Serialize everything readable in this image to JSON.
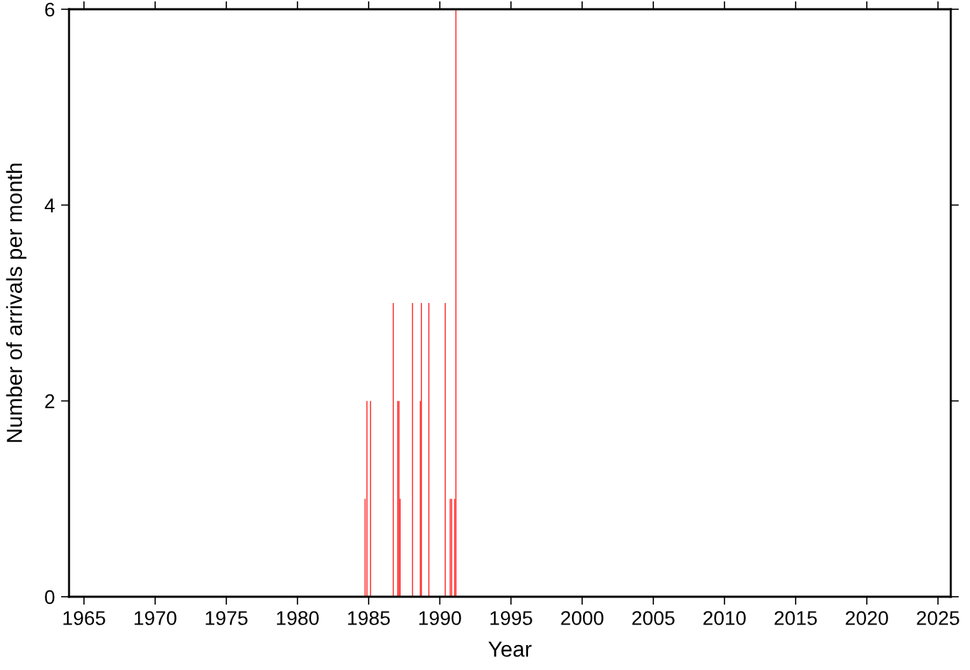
{
  "chart_data": {
    "type": "bar",
    "xlabel": "Year",
    "ylabel": "Number of arrivals per month",
    "x": [
      1984.75,
      1984.88,
      1985.13,
      1986.73,
      1987.04,
      1987.13,
      1987.21,
      1988.08,
      1988.63,
      1988.71,
      1989.23,
      1990.38,
      1990.73,
      1990.83,
      1991.04,
      1991.13
    ],
    "values": [
      1,
      2,
      2,
      3,
      2,
      2,
      1,
      3,
      2,
      3,
      3,
      3,
      1,
      1,
      1,
      6
    ],
    "color": "#ff2020",
    "xlim": [
      1963.95,
      2025.9
    ],
    "xticks": [
      1965,
      1970,
      1975,
      1980,
      1985,
      1990,
      1995,
      2000,
      2005,
      2010,
      2015,
      2020,
      2025
    ],
    "ylim": [
      0,
      6
    ],
    "yticks": [
      0,
      2,
      4,
      6
    ],
    "grid": false
  }
}
